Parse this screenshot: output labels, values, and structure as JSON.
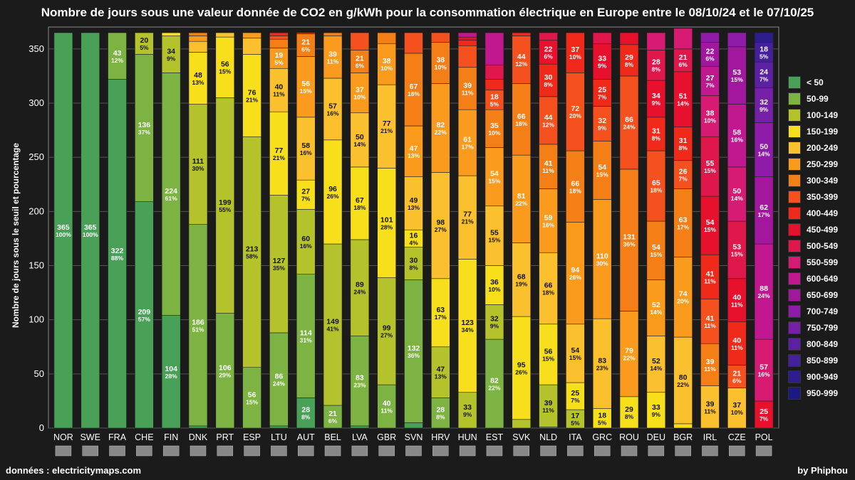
{
  "header": {
    "title": "Nombre de jours sous une valeur donnée de CO2 en g/kWh pour la consommation électrique en Europe entre le 08/10/24 et le 07/10/25"
  },
  "footer": {
    "source": "données : electricitymaps.com",
    "author": "by Phiphou"
  },
  "chart_data": {
    "type": "bar",
    "stacked": true,
    "ylabel": "Nombre de jours sous le seuil et pourcentage",
    "ylim": [
      0,
      365
    ],
    "yticks": [
      0,
      50,
      100,
      150,
      200,
      250,
      300,
      350
    ],
    "grid": true,
    "legend_position": "right",
    "categories": [
      "NOR",
      "SWE",
      "FRA",
      "CHE",
      "FIN",
      "DNK",
      "PRT",
      "ESP",
      "LTU",
      "AUT",
      "BEL",
      "LVA",
      "GBR",
      "SVN",
      "HRV",
      "HUN",
      "EST",
      "SVK",
      "NLD",
      "ITA",
      "GRC",
      "ROU",
      "DEU",
      "BGR",
      "IRL",
      "CZE",
      "POL"
    ],
    "series": [
      {
        "name": "< 50",
        "color": "#49a158"
      },
      {
        "name": "50-99",
        "color": "#7cb342"
      },
      {
        "name": "100-149",
        "color": "#b4c22b"
      },
      {
        "name": "150-199",
        "color": "#f7e01b"
      },
      {
        "name": "200-249",
        "color": "#fbc02d"
      },
      {
        "name": "250-299",
        "color": "#fb9b1d"
      },
      {
        "name": "300-349",
        "color": "#f57f17"
      },
      {
        "name": "350-399",
        "color": "#f4511e"
      },
      {
        "name": "400-449",
        "color": "#ef2a1b"
      },
      {
        "name": "450-499",
        "color": "#e8112d"
      },
      {
        "name": "500-549",
        "color": "#e0174a"
      },
      {
        "name": "550-599",
        "color": "#d81b72"
      },
      {
        "name": "600-649",
        "color": "#c2188f"
      },
      {
        "name": "650-699",
        "color": "#a3179f"
      },
      {
        "name": "700-749",
        "color": "#8e1ca8"
      },
      {
        "name": "750-799",
        "color": "#7421a8"
      },
      {
        "name": "800-849",
        "color": "#5b21a3"
      },
      {
        "name": "850-899",
        "color": "#44209b"
      },
      {
        "name": "900-949",
        "color": "#2d1d8f"
      },
      {
        "name": "950-999",
        "color": "#1a1a80"
      }
    ],
    "bars": [
      [
        [
          0,
          365,
          "100%"
        ]
      ],
      [
        [
          0,
          365,
          "100%"
        ]
      ],
      [
        [
          0,
          322,
          "88%"
        ],
        [
          1,
          43,
          "12%"
        ]
      ],
      [
        [
          0,
          209,
          "57%"
        ],
        [
          1,
          136,
          "37%"
        ],
        [
          2,
          20,
          "5%"
        ]
      ],
      [
        [
          0,
          104,
          "28%"
        ],
        [
          1,
          224,
          "61%"
        ],
        [
          2,
          34,
          "9%"
        ],
        [
          3,
          3,
          ""
        ]
      ],
      [
        [
          0,
          2,
          ""
        ],
        [
          1,
          186,
          "51%"
        ],
        [
          2,
          111,
          "30%"
        ],
        [
          3,
          48,
          "13%"
        ],
        [
          4,
          10,
          ""
        ],
        [
          5,
          5,
          ""
        ],
        [
          6,
          3,
          ""
        ]
      ],
      [
        [
          1,
          106,
          "29%"
        ],
        [
          2,
          199,
          "55%"
        ],
        [
          3,
          56,
          "15%"
        ],
        [
          4,
          4,
          ""
        ]
      ],
      [
        [
          1,
          56,
          "15%"
        ],
        [
          2,
          213,
          "58%"
        ],
        [
          3,
          76,
          "21%"
        ],
        [
          4,
          15,
          ""
        ],
        [
          5,
          5,
          ""
        ]
      ],
      [
        [
          0,
          2,
          ""
        ],
        [
          1,
          86,
          "24%"
        ],
        [
          2,
          127,
          "35%"
        ],
        [
          3,
          77,
          "21%"
        ],
        [
          4,
          40,
          "11%"
        ],
        [
          5,
          19,
          "5%"
        ],
        [
          6,
          8,
          ""
        ],
        [
          7,
          3,
          ""
        ],
        [
          8,
          3,
          ""
        ]
      ],
      [
        [
          0,
          28,
          "8%"
        ],
        [
          1,
          114,
          "31%"
        ],
        [
          2,
          60,
          "16%"
        ],
        [
          3,
          27,
          "7%"
        ],
        [
          4,
          58,
          "16%"
        ],
        [
          5,
          56,
          "15%"
        ],
        [
          6,
          21,
          "6%"
        ],
        [
          7,
          1,
          ""
        ]
      ],
      [
        [
          1,
          21,
          "6%"
        ],
        [
          2,
          149,
          "41%"
        ],
        [
          3,
          96,
          "26%"
        ],
        [
          4,
          57,
          "16%"
        ],
        [
          5,
          39,
          "11%"
        ],
        [
          6,
          3,
          ""
        ]
      ],
      [
        [
          0,
          2,
          ""
        ],
        [
          1,
          83,
          "23%"
        ],
        [
          2,
          89,
          "24%"
        ],
        [
          3,
          67,
          "18%"
        ],
        [
          4,
          50,
          "14%"
        ],
        [
          5,
          37,
          "10%"
        ],
        [
          6,
          21,
          "6%"
        ],
        [
          7,
          16,
          ""
        ]
      ],
      [
        [
          1,
          40,
          "11%"
        ],
        [
          2,
          99,
          "27%"
        ],
        [
          3,
          101,
          "28%"
        ],
        [
          4,
          77,
          "21%"
        ],
        [
          5,
          38,
          "10%"
        ],
        [
          6,
          10,
          ""
        ]
      ],
      [
        [
          0,
          5,
          ""
        ],
        [
          1,
          132,
          "36%"
        ],
        [
          2,
          30,
          "8%"
        ],
        [
          3,
          16,
          "4%"
        ],
        [
          4,
          49,
          "13%"
        ],
        [
          5,
          47,
          "13%"
        ],
        [
          6,
          67,
          "18%"
        ],
        [
          7,
          19,
          ""
        ]
      ],
      [
        [
          1,
          28,
          "8%"
        ],
        [
          2,
          47,
          "13%"
        ],
        [
          3,
          63,
          "17%"
        ],
        [
          4,
          98,
          "27%"
        ],
        [
          5,
          82,
          "22%"
        ],
        [
          6,
          38,
          "10%"
        ],
        [
          7,
          9,
          ""
        ]
      ],
      [
        [
          2,
          33,
          "9%"
        ],
        [
          3,
          123,
          "34%"
        ],
        [
          4,
          77,
          "21%"
        ],
        [
          5,
          61,
          "17%"
        ],
        [
          6,
          39,
          "11%"
        ],
        [
          7,
          20,
          ""
        ],
        [
          8,
          5,
          ""
        ],
        [
          9,
          3,
          ""
        ],
        [
          12,
          4,
          ""
        ]
      ],
      [
        [
          1,
          82,
          "22%"
        ],
        [
          2,
          32,
          "9%"
        ],
        [
          3,
          36,
          "10%"
        ],
        [
          4,
          55,
          "15%"
        ],
        [
          5,
          54,
          "15%"
        ],
        [
          6,
          35,
          "10%"
        ],
        [
          7,
          18,
          "5%"
        ],
        [
          8,
          10,
          ""
        ],
        [
          10,
          13,
          ""
        ],
        [
          12,
          30,
          ""
        ]
      ],
      [
        [
          2,
          8,
          ""
        ],
        [
          3,
          95,
          "26%"
        ],
        [
          4,
          68,
          "19%"
        ],
        [
          5,
          81,
          "22%"
        ],
        [
          6,
          66,
          "18%"
        ],
        [
          7,
          44,
          "12%"
        ],
        [
          8,
          3,
          ""
        ]
      ],
      [
        [
          1,
          1,
          ""
        ],
        [
          2,
          39,
          "11%"
        ],
        [
          3,
          56,
          "15%"
        ],
        [
          4,
          66,
          "18%"
        ],
        [
          5,
          59,
          "16%"
        ],
        [
          6,
          41,
          "11%"
        ],
        [
          7,
          44,
          "12%"
        ],
        [
          8,
          30,
          "8%"
        ],
        [
          9,
          22,
          "6%"
        ],
        [
          10,
          7,
          ""
        ]
      ],
      [
        [
          2,
          17,
          "5%"
        ],
        [
          3,
          25,
          "7%"
        ],
        [
          4,
          54,
          "15%"
        ],
        [
          5,
          94,
          "26%"
        ],
        [
          6,
          66,
          "18%"
        ],
        [
          7,
          72,
          "20%"
        ],
        [
          8,
          37,
          "10%"
        ]
      ],
      [
        [
          3,
          18,
          "5%"
        ],
        [
          4,
          83,
          "23%"
        ],
        [
          5,
          110,
          "30%"
        ],
        [
          6,
          54,
          "15%"
        ],
        [
          7,
          32,
          "9%"
        ],
        [
          8,
          25,
          "7%"
        ],
        [
          9,
          33,
          "9%"
        ],
        [
          10,
          10,
          ""
        ]
      ],
      [
        [
          3,
          29,
          "8%"
        ],
        [
          5,
          79,
          "22%"
        ],
        [
          6,
          131,
          "36%"
        ],
        [
          7,
          86,
          "24%"
        ],
        [
          8,
          29,
          "8%"
        ],
        [
          9,
          11,
          ""
        ]
      ],
      [
        [
          3,
          33,
          "9%"
        ],
        [
          4,
          52,
          "14%"
        ],
        [
          5,
          52,
          "14%"
        ],
        [
          6,
          54,
          "15%"
        ],
        [
          7,
          65,
          "18%"
        ],
        [
          8,
          31,
          "8%"
        ],
        [
          9,
          34,
          "9%"
        ],
        [
          10,
          28,
          "8%"
        ],
        [
          11,
          16,
          ""
        ]
      ],
      [
        [
          3,
          4,
          ""
        ],
        [
          4,
          80,
          "22%"
        ],
        [
          5,
          74,
          "20%"
        ],
        [
          6,
          63,
          "17%"
        ],
        [
          7,
          26,
          "7%"
        ],
        [
          8,
          31,
          "8%"
        ],
        [
          9,
          51,
          "14%"
        ],
        [
          10,
          21,
          "6%"
        ],
        [
          11,
          19,
          ""
        ]
      ],
      [
        [
          4,
          39,
          "11%"
        ],
        [
          6,
          39,
          "11%"
        ],
        [
          7,
          41,
          "11%"
        ],
        [
          8,
          41,
          "11%"
        ],
        [
          9,
          54,
          "15%"
        ],
        [
          10,
          55,
          "15%"
        ],
        [
          11,
          38,
          "10%"
        ],
        [
          12,
          27,
          "7%"
        ],
        [
          13,
          22,
          "6%"
        ],
        [
          14,
          9,
          ""
        ]
      ],
      [
        [
          4,
          37,
          "10%"
        ],
        [
          7,
          21,
          "6%"
        ],
        [
          8,
          40,
          "11%"
        ],
        [
          9,
          40,
          "11%"
        ],
        [
          10,
          53,
          "15%"
        ],
        [
          11,
          50,
          "14%"
        ],
        [
          12,
          58,
          "16%"
        ],
        [
          13,
          53,
          "15%"
        ],
        [
          14,
          13,
          ""
        ]
      ],
      [
        [
          9,
          25,
          "7%"
        ],
        [
          11,
          57,
          "16%"
        ],
        [
          12,
          88,
          "24%"
        ],
        [
          13,
          62,
          "17%"
        ],
        [
          14,
          50,
          "14%"
        ],
        [
          15,
          32,
          "9%"
        ],
        [
          16,
          24,
          "7%"
        ],
        [
          17,
          18,
          "5%"
        ],
        [
          18,
          9,
          ""
        ]
      ]
    ]
  }
}
